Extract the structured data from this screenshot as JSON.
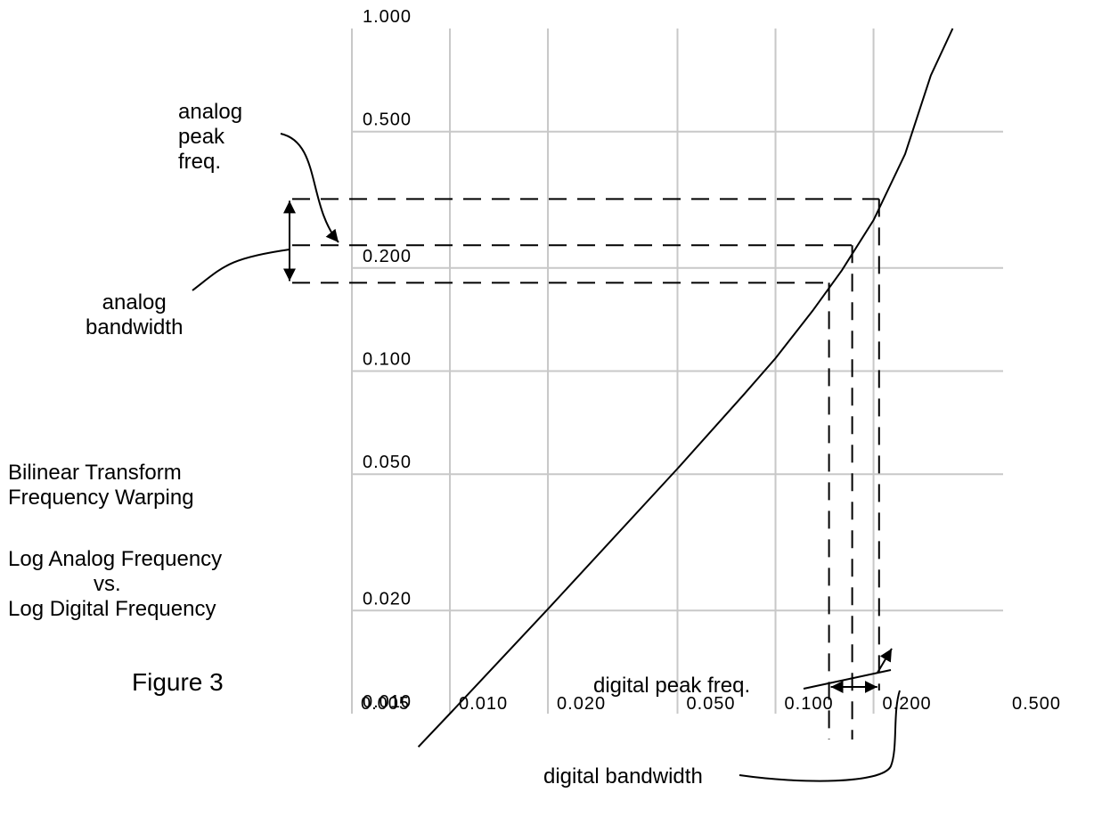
{
  "chart_data": {
    "type": "line",
    "scale": "log-log",
    "grid": true,
    "x_ticks": [
      "0.005",
      "0.010",
      "0.020",
      "0.050",
      "0.100",
      "0.200",
      "0.500"
    ],
    "y_ticks": [
      "0.010",
      "0.020",
      "0.050",
      "0.100",
      "0.200",
      "0.500",
      "1.000"
    ],
    "x_tick_values": [
      0.005,
      0.01,
      0.02,
      0.05,
      0.1,
      0.2,
      0.5
    ],
    "y_tick_values": [
      0.01,
      0.02,
      0.05,
      0.1,
      0.2,
      0.5,
      1.0
    ],
    "xlim": [
      0.005,
      0.5
    ],
    "ylim": [
      0.01,
      1.0
    ],
    "series": [
      {
        "x": [
          0.008,
          0.01,
          0.02,
          0.05,
          0.08,
          0.1,
          0.13,
          0.16,
          0.2,
          0.25,
          0.3,
          0.35
        ],
        "y": [
          0.008,
          0.01,
          0.0202,
          0.0519,
          0.0855,
          0.109,
          0.15,
          0.197,
          0.276,
          0.43,
          0.73,
          1.0
        ],
        "color": "#000000"
      }
    ],
    "markers": {
      "analog_low": 0.181,
      "analog_peak": 0.233,
      "analog_high": 0.318,
      "digital_low": 0.146,
      "digital_peak": 0.172,
      "digital_high": 0.208
    }
  },
  "text": {
    "title_line1": "Bilinear Transform",
    "title_line2": "Frequency Warping",
    "subtitle_line1": "Log Analog Frequency",
    "subtitle_line2": "vs.",
    "subtitle_line3": "Log Digital Frequency",
    "figure_label": "Figure 3",
    "analog_peak_line1": "analog",
    "analog_peak_line2": "peak",
    "analog_peak_line3": "freq.",
    "analog_bw_line1": "analog",
    "analog_bw_line2": "bandwidth",
    "digital_peak": "digital peak freq.",
    "digital_bw": "digital bandwidth"
  }
}
